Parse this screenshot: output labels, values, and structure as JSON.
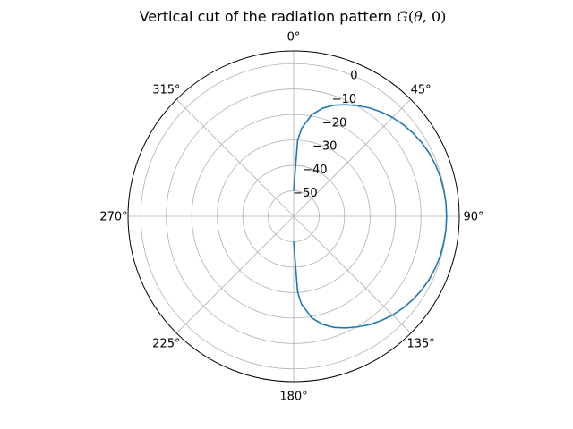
{
  "chart_data": {
    "type": "line",
    "projection": "polar",
    "title": "Vertical cut of the radiation pattern G(θ, 0)",
    "title_parts": {
      "prefix": "Vertical cut of the radiation pattern ",
      "math_G": "G",
      "math_open": "(",
      "math_theta": "θ",
      "math_rest": ", 0)"
    },
    "theta_zero_location": "top",
    "theta_direction": "clockwise",
    "angle_ticks": [
      "0°",
      "45°",
      "90°",
      "135°",
      "180°",
      "225°",
      "270°",
      "315°"
    ],
    "angle_tick_values": [
      0,
      45,
      90,
      135,
      180,
      225,
      270,
      315
    ],
    "radial_ticks": [
      "−50",
      "−40",
      "−30",
      "−20",
      "−10",
      "0"
    ],
    "radial_tick_values": [
      -50,
      -40,
      -30,
      -20,
      -10,
      0
    ],
    "rlim": [
      -60,
      5
    ],
    "radial_label_angle_deg": 22.5,
    "grid": true,
    "series": [
      {
        "color": "#1f77b4",
        "theta_deg": [
          0,
          3,
          5,
          10,
          15,
          20,
          25,
          30,
          35,
          40,
          45,
          50,
          55,
          60,
          65,
          70,
          75,
          80,
          85,
          90,
          95,
          100,
          105,
          110,
          115,
          120,
          125,
          130,
          135,
          140,
          145,
          150,
          155,
          160,
          165,
          170,
          175,
          177,
          180
        ],
        "gain_db": [
          -50.0,
          -30.2,
          -25.5,
          -19.5,
          -16.0,
          -13.5,
          -11.6,
          -9.8,
          -8.0,
          -6.5,
          -5.1,
          -3.9,
          -2.9,
          -2.0,
          -1.3,
          -0.8,
          -0.4,
          -0.2,
          0.0,
          0.0,
          0.0,
          -0.2,
          -0.4,
          -0.8,
          -1.3,
          -2.0,
          -2.9,
          -3.9,
          -5.1,
          -6.5,
          -8.0,
          -9.8,
          -11.6,
          -13.5,
          -16.0,
          -19.5,
          -25.5,
          -30.2,
          -50.0
        ]
      }
    ]
  }
}
